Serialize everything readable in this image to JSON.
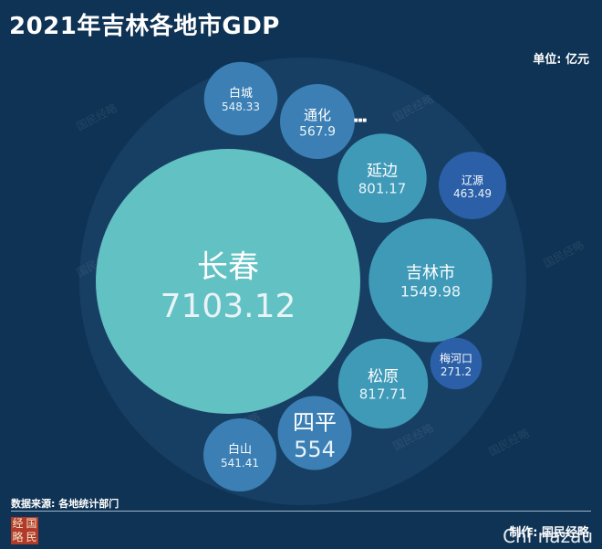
{
  "title": "2021年吉林各地市GDP",
  "unit_label": "单位: 亿元",
  "source": "数据来源: 各地统计部门",
  "credit": "制作: 国民经略",
  "logo_chars": [
    "经",
    "国",
    "略",
    "民"
  ],
  "watermark": "国民经略",
  "corner_watermark": "Chi nazau",
  "colors": {
    "background": "#0f3354",
    "outer_disc": "#173f63",
    "changchun": "#62c1c3",
    "mid_teal": "#3f9ab8",
    "steel_blue": "#3b7fb5",
    "dark_blue": "#2b5fa8"
  },
  "chart_data": {
    "type": "packed-bubble",
    "title": "2021年吉林各地市GDP",
    "unit": "亿元",
    "categories": [
      "长春",
      "吉林市",
      "松原",
      "延边",
      "通化",
      "四平",
      "白城",
      "白山",
      "辽源",
      "梅河口"
    ],
    "values": [
      7103.12,
      1549.98,
      817.71,
      801.17,
      567.9,
      554,
      548.33,
      541.41,
      463.49,
      271.2
    ],
    "value_labels": [
      "7103.12",
      "1549.98",
      "817.71",
      "801.17",
      "567.9",
      "554",
      "548.33",
      "541.41",
      "463.49",
      "271.2"
    ]
  }
}
